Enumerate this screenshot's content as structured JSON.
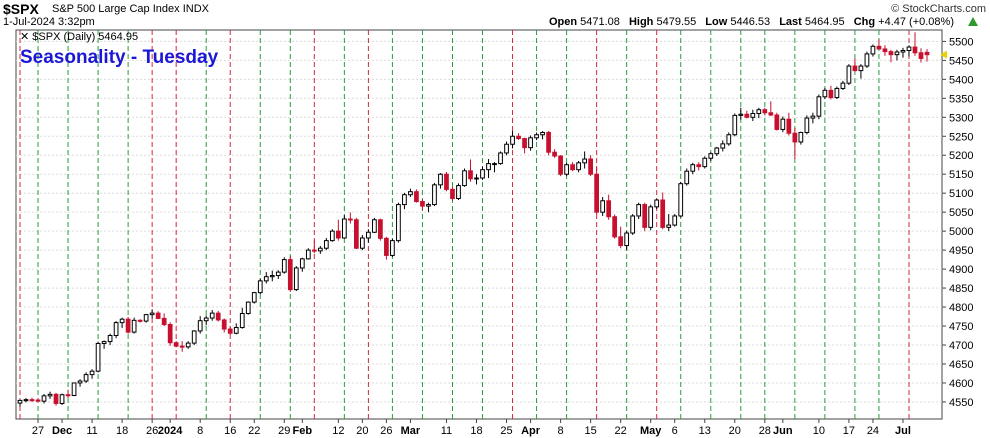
{
  "header": {
    "symbol": "$SPX",
    "name": "S&P 500 Large Cap Index",
    "exchange": "INDX",
    "datetime": "1-Jul-2024 3:32pm",
    "brand": "© StockCharts.com",
    "open_label": "Open",
    "open": "5471.08",
    "high_label": "High",
    "high": "5479.55",
    "low_label": "Low",
    "low": "5446.53",
    "last_label": "Last",
    "last": "5464.95",
    "chg_label": "Chg",
    "chg": "+4.47 (+0.08%)",
    "chg_color": "#2e9a2e"
  },
  "chart_data": {
    "type": "candlestick",
    "title": "Seasonality - Tuesday",
    "legend": "$SPX (Daily) 5464.95",
    "ylim": [
      4505,
      5530
    ],
    "y_ticks": [
      4550,
      4600,
      4650,
      4700,
      4750,
      4800,
      4850,
      4900,
      4950,
      5000,
      5050,
      5100,
      5150,
      5200,
      5250,
      5300,
      5350,
      5400,
      5450,
      5500
    ],
    "x_labels": [
      {
        "i": 3,
        "text": "27"
      },
      {
        "i": 7,
        "text": "Dec",
        "bold": true
      },
      {
        "i": 12,
        "text": "11"
      },
      {
        "i": 17,
        "text": "18"
      },
      {
        "i": 22,
        "text": "26"
      },
      {
        "i": 25,
        "text": "2024",
        "bold": true
      },
      {
        "i": 30,
        "text": "8"
      },
      {
        "i": 35,
        "text": "16"
      },
      {
        "i": 39,
        "text": "22"
      },
      {
        "i": 44,
        "text": "29"
      },
      {
        "i": 47,
        "text": "Feb",
        "bold": true
      },
      {
        "i": 53,
        "text": "12"
      },
      {
        "i": 57,
        "text": "20"
      },
      {
        "i": 61,
        "text": "26"
      },
      {
        "i": 65,
        "text": "Mar",
        "bold": true
      },
      {
        "i": 71,
        "text": "11"
      },
      {
        "i": 76,
        "text": "18"
      },
      {
        "i": 81,
        "text": "25"
      },
      {
        "i": 85,
        "text": "Apr",
        "bold": true
      },
      {
        "i": 90,
        "text": "8"
      },
      {
        "i": 95,
        "text": "15"
      },
      {
        "i": 100,
        "text": "22"
      },
      {
        "i": 105,
        "text": "May",
        "bold": true
      },
      {
        "i": 109,
        "text": "6"
      },
      {
        "i": 114,
        "text": "13"
      },
      {
        "i": 119,
        "text": "20"
      },
      {
        "i": 124,
        "text": "28"
      },
      {
        "i": 127,
        "text": "Jun",
        "bold": true
      },
      {
        "i": 133,
        "text": "10"
      },
      {
        "i": 138,
        "text": "17"
      },
      {
        "i": 142,
        "text": "24"
      },
      {
        "i": 147,
        "text": "Jul",
        "bold": true
      }
    ],
    "vlines": [
      {
        "i": 0,
        "c": "red"
      },
      {
        "i": 3,
        "c": "green"
      },
      {
        "i": 8,
        "c": "green"
      },
      {
        "i": 13,
        "c": "green"
      },
      {
        "i": 18,
        "c": "green"
      },
      {
        "i": 22,
        "c": "red"
      },
      {
        "i": 26,
        "c": "red"
      },
      {
        "i": 31,
        "c": "green"
      },
      {
        "i": 35,
        "c": "red"
      },
      {
        "i": 40,
        "c": "green"
      },
      {
        "i": 45,
        "c": "green"
      },
      {
        "i": 49,
        "c": "red"
      },
      {
        "i": 54,
        "c": "green"
      },
      {
        "i": 58,
        "c": "red"
      },
      {
        "i": 62,
        "c": "green"
      },
      {
        "i": 67,
        "c": "green"
      },
      {
        "i": 72,
        "c": "green"
      },
      {
        "i": 77,
        "c": "green"
      },
      {
        "i": 82,
        "c": "red"
      },
      {
        "i": 86,
        "c": "green"
      },
      {
        "i": 91,
        "c": "green"
      },
      {
        "i": 96,
        "c": "red"
      },
      {
        "i": 101,
        "c": "green"
      },
      {
        "i": 106,
        "c": "red"
      },
      {
        "i": 110,
        "c": "green"
      },
      {
        "i": 115,
        "c": "green"
      },
      {
        "i": 120,
        "c": "green"
      },
      {
        "i": 124,
        "c": "green"
      },
      {
        "i": 129,
        "c": "green"
      },
      {
        "i": 134,
        "c": "green"
      },
      {
        "i": 139,
        "c": "green"
      },
      {
        "i": 143,
        "c": "green"
      },
      {
        "i": 148,
        "c": "red"
      }
    ],
    "candles": [
      [
        4547,
        4556,
        4538,
        4554
      ],
      [
        4554,
        4560,
        4549,
        4556
      ],
      [
        4556,
        4561,
        4550,
        4555
      ],
      [
        4555,
        4560,
        4549,
        4552
      ],
      [
        4552,
        4571,
        4546,
        4566
      ],
      [
        4566,
        4577,
        4558,
        4570
      ],
      [
        4570,
        4574,
        4540,
        4546
      ],
      [
        4546,
        4572,
        4542,
        4569
      ],
      [
        4569,
        4582,
        4560,
        4567
      ],
      [
        4567,
        4601,
        4565,
        4600
      ],
      [
        4600,
        4610,
        4590,
        4605
      ],
      [
        4605,
        4628,
        4600,
        4622
      ],
      [
        4622,
        4636,
        4611,
        4631
      ],
      [
        4631,
        4709,
        4628,
        4704
      ],
      [
        4704,
        4712,
        4690,
        4709
      ],
      [
        4709,
        4730,
        4700,
        4725
      ],
      [
        4725,
        4763,
        4718,
        4759
      ],
      [
        4759,
        4772,
        4745,
        4768
      ],
      [
        4768,
        4774,
        4730,
        4734
      ],
      [
        4734,
        4772,
        4730,
        4765
      ],
      [
        4765,
        4768,
        4759,
        4763
      ],
      [
        4763,
        4782,
        4759,
        4780
      ],
      [
        4780,
        4794,
        4770,
        4784
      ],
      [
        4784,
        4789,
        4768,
        4770
      ],
      [
        4770,
        4783,
        4750,
        4754
      ],
      [
        4754,
        4760,
        4698,
        4706
      ],
      [
        4706,
        4710,
        4694,
        4697
      ],
      [
        4697,
        4710,
        4682,
        4695
      ],
      [
        4695,
        4710,
        4690,
        4705
      ],
      [
        4705,
        4739,
        4700,
        4737
      ],
      [
        4737,
        4776,
        4730,
        4764
      ],
      [
        4764,
        4778,
        4752,
        4771
      ],
      [
        4771,
        4792,
        4764,
        4784
      ],
      [
        4784,
        4790,
        4762,
        4766
      ],
      [
        4766,
        4770,
        4733,
        4742
      ],
      [
        4742,
        4748,
        4727,
        4731
      ],
      [
        4731,
        4757,
        4728,
        4746
      ],
      [
        4746,
        4798,
        4743,
        4783
      ],
      [
        4783,
        4815,
        4780,
        4813
      ],
      [
        4813,
        4840,
        4809,
        4838
      ],
      [
        4838,
        4875,
        4834,
        4869
      ],
      [
        4869,
        4892,
        4862,
        4880
      ],
      [
        4880,
        4896,
        4868,
        4883
      ],
      [
        4883,
        4897,
        4874,
        4892
      ],
      [
        4892,
        4931,
        4888,
        4925
      ],
      [
        4925,
        4934,
        4840,
        4846
      ],
      [
        4846,
        4908,
        4842,
        4903
      ],
      [
        4903,
        4930,
        4893,
        4927
      ],
      [
        4927,
        4955,
        4925,
        4950
      ],
      [
        4950,
        4975,
        4942,
        4948
      ],
      [
        4948,
        4961,
        4940,
        4955
      ],
      [
        4955,
        4982,
        4950,
        4975
      ],
      [
        4975,
        5005,
        4972,
        5000
      ],
      [
        5000,
        5030,
        4975,
        4982
      ],
      [
        4982,
        5042,
        4980,
        5032
      ],
      [
        5032,
        5049,
        5020,
        5030
      ],
      [
        5030,
        5035,
        4953,
        4955
      ],
      [
        4955,
        4990,
        4950,
        4982
      ],
      [
        4982,
        5005,
        4970,
        4997
      ],
      [
        4997,
        5035,
        4995,
        5030
      ],
      [
        5030,
        5033,
        4975,
        4981
      ],
      [
        4981,
        4985,
        4925,
        4936
      ],
      [
        4936,
        4980,
        4932,
        4975
      ],
      [
        4975,
        5075,
        4970,
        5070
      ],
      [
        5070,
        5101,
        5058,
        5096
      ],
      [
        5096,
        5112,
        5090,
        5104
      ],
      [
        5104,
        5110,
        5075,
        5078
      ],
      [
        5078,
        5084,
        5055,
        5066
      ],
      [
        5066,
        5075,
        5050,
        5070
      ],
      [
        5070,
        5127,
        5066,
        5122
      ],
      [
        5122,
        5153,
        5112,
        5150
      ],
      [
        5150,
        5156,
        5105,
        5110
      ],
      [
        5110,
        5117,
        5080,
        5086
      ],
      [
        5086,
        5126,
        5082,
        5120
      ],
      [
        5120,
        5165,
        5117,
        5159
      ],
      [
        5159,
        5189,
        5130,
        5138
      ],
      [
        5138,
        5150,
        5123,
        5140
      ],
      [
        5140,
        5170,
        5135,
        5162
      ],
      [
        5162,
        5190,
        5140,
        5178
      ],
      [
        5178,
        5182,
        5155,
        5178
      ],
      [
        5178,
        5210,
        5175,
        5206
      ],
      [
        5206,
        5236,
        5200,
        5229
      ],
      [
        5229,
        5264,
        5218,
        5250
      ],
      [
        5250,
        5258,
        5240,
        5244
      ],
      [
        5244,
        5246,
        5205,
        5220
      ],
      [
        5220,
        5252,
        5212,
        5246
      ],
      [
        5246,
        5260,
        5240,
        5254
      ],
      [
        5254,
        5264,
        5242,
        5260
      ],
      [
        5260,
        5264,
        5200,
        5208
      ],
      [
        5208,
        5216,
        5193,
        5198
      ],
      [
        5198,
        5200,
        5145,
        5150
      ],
      [
        5150,
        5180,
        5145,
        5175
      ],
      [
        5175,
        5182,
        5158,
        5162
      ],
      [
        5162,
        5185,
        5155,
        5180
      ],
      [
        5180,
        5210,
        5165,
        5190
      ],
      [
        5190,
        5200,
        5145,
        5150
      ],
      [
        5150,
        5168,
        5045,
        5050
      ],
      [
        5050,
        5090,
        5040,
        5080
      ],
      [
        5080,
        5096,
        5030,
        5038
      ],
      [
        5038,
        5044,
        4980,
        4985
      ],
      [
        4985,
        5012,
        4955,
        4962
      ],
      [
        4962,
        5000,
        4950,
        4995
      ],
      [
        4995,
        5045,
        4990,
        5040
      ],
      [
        5040,
        5075,
        5032,
        5070
      ],
      [
        5070,
        5075,
        5000,
        5010
      ],
      [
        5010,
        5070,
        5002,
        5064
      ],
      [
        5064,
        5085,
        5058,
        5082
      ],
      [
        5082,
        5102,
        5005,
        5010
      ],
      [
        5010,
        5045,
        5000,
        5016
      ],
      [
        5016,
        5045,
        5012,
        5040
      ],
      [
        5040,
        5130,
        5036,
        5125
      ],
      [
        5125,
        5165,
        5120,
        5158
      ],
      [
        5158,
        5180,
        5150,
        5175
      ],
      [
        5175,
        5182,
        5160,
        5170
      ],
      [
        5170,
        5197,
        5165,
        5192
      ],
      [
        5192,
        5208,
        5185,
        5204
      ],
      [
        5204,
        5222,
        5198,
        5219
      ],
      [
        5219,
        5239,
        5210,
        5230
      ],
      [
        5230,
        5260,
        5225,
        5254
      ],
      [
        5254,
        5310,
        5250,
        5305
      ],
      [
        5305,
        5325,
        5294,
        5308
      ],
      [
        5308,
        5317,
        5297,
        5300
      ],
      [
        5300,
        5320,
        5290,
        5310
      ],
      [
        5310,
        5325,
        5298,
        5320
      ],
      [
        5320,
        5325,
        5305,
        5312
      ],
      [
        5312,
        5342,
        5303,
        5306
      ],
      [
        5306,
        5312,
        5265,
        5268
      ],
      [
        5268,
        5302,
        5261,
        5295
      ],
      [
        5295,
        5312,
        5252,
        5258
      ],
      [
        5258,
        5272,
        5190,
        5235
      ],
      [
        5235,
        5262,
        5228,
        5260
      ],
      [
        5260,
        5305,
        5255,
        5298
      ],
      [
        5298,
        5312,
        5284,
        5303
      ],
      [
        5303,
        5360,
        5295,
        5354
      ],
      [
        5354,
        5377,
        5348,
        5371
      ],
      [
        5371,
        5383,
        5347,
        5352
      ],
      [
        5352,
        5381,
        5348,
        5376
      ],
      [
        5376,
        5396,
        5372,
        5390
      ],
      [
        5390,
        5440,
        5385,
        5435
      ],
      [
        5435,
        5455,
        5420,
        5423
      ],
      [
        5423,
        5440,
        5402,
        5435
      ],
      [
        5435,
        5473,
        5430,
        5467
      ],
      [
        5467,
        5492,
        5460,
        5487
      ],
      [
        5487,
        5505,
        5478,
        5480
      ],
      [
        5480,
        5490,
        5462,
        5473
      ],
      [
        5473,
        5478,
        5445,
        5465
      ],
      [
        5465,
        5478,
        5450,
        5472
      ],
      [
        5472,
        5483,
        5457,
        5476
      ],
      [
        5476,
        5490,
        5460,
        5485
      ],
      [
        5485,
        5524,
        5462,
        5470
      ],
      [
        5470,
        5482,
        5444,
        5455
      ],
      [
        5471.08,
        5479.55,
        5446.53,
        5464.95
      ]
    ]
  }
}
